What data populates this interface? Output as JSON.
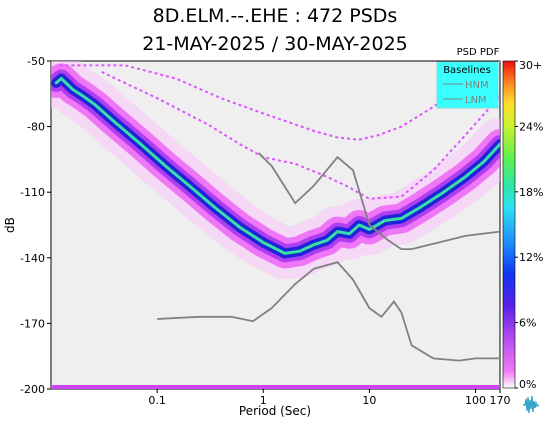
{
  "title_line1": "8D.ELM.--.EHE : 472 PSDs",
  "title_line2": "21-MAY-2025 / 30-MAY-2025",
  "colorbar_title": "PSD PDF",
  "legend": {
    "title": "Baselines",
    "entries": [
      "HNM",
      "LNM"
    ]
  },
  "colors": {
    "plot_background": "#efefef",
    "legend_background": "#39ffff",
    "baseline_lines": "#808080",
    "noise_models": "#dd55ff",
    "mode_line": "#38e0a8"
  },
  "logo_icon": "waveform-logo-icon",
  "chart_data": {
    "type": "heatmap",
    "xlabel": "Period (Sec)",
    "ylabel": "dB",
    "x_scale": "log",
    "xlim": [
      0.01,
      170
    ],
    "ylim": [
      -200,
      -50
    ],
    "x_ticks": [
      {
        "value": 0.1,
        "label": "0.1"
      },
      {
        "value": 1,
        "label": "1"
      },
      {
        "value": 10,
        "label": "10"
      },
      {
        "value": 100,
        "label": "100"
      },
      {
        "value": 170,
        "label": "170"
      }
    ],
    "y_ticks": [
      {
        "value": -50,
        "label": "-50"
      },
      {
        "value": -80,
        "label": "-80"
      },
      {
        "value": -110,
        "label": "-110"
      },
      {
        "value": -140,
        "label": "-140"
      },
      {
        "value": -170,
        "label": "-170"
      },
      {
        "value": -200,
        "label": "-200"
      }
    ],
    "colorbar": {
      "ticks": [
        "0%",
        "6%",
        "12%",
        "18%",
        "24%",
        "30+"
      ],
      "range": [
        0,
        30
      ]
    },
    "mode_curve": [
      [
        0.0112,
        -60
      ],
      [
        0.0125,
        -58
      ],
      [
        0.016,
        -63
      ],
      [
        0.02,
        -66
      ],
      [
        0.026,
        -70
      ],
      [
        0.04,
        -78
      ],
      [
        0.07,
        -88
      ],
      [
        0.12,
        -98
      ],
      [
        0.2,
        -107
      ],
      [
        0.35,
        -117
      ],
      [
        0.6,
        -126
      ],
      [
        1.0,
        -133
      ],
      [
        1.6,
        -138
      ],
      [
        2.2,
        -137
      ],
      [
        3.0,
        -134
      ],
      [
        4.0,
        -132
      ],
      [
        5.0,
        -128
      ],
      [
        6.5,
        -129
      ],
      [
        8.0,
        -125
      ],
      [
        10.0,
        -127
      ],
      [
        14.0,
        -123
      ],
      [
        20.0,
        -122
      ],
      [
        30.0,
        -117
      ],
      [
        50.0,
        -110
      ],
      [
        80.0,
        -103
      ],
      [
        120.0,
        -96
      ],
      [
        170.0,
        -88
      ]
    ],
    "gray_lines": [
      {
        "points": [
          [
            0.9,
            -92
          ],
          [
            1.2,
            -98
          ],
          [
            2.0,
            -115
          ],
          [
            3.0,
            -107
          ],
          [
            5.0,
            -94
          ],
          [
            7.0,
            -100
          ],
          [
            10.0,
            -125
          ],
          [
            15.0,
            -132
          ],
          [
            20.0,
            -136
          ],
          [
            25.0,
            -136
          ],
          [
            45.0,
            -133
          ],
          [
            80.0,
            -130
          ],
          [
            170.0,
            -128
          ]
        ]
      },
      {
        "points": [
          [
            0.1,
            -168
          ],
          [
            0.25,
            -167
          ],
          [
            0.5,
            -167
          ],
          [
            0.8,
            -169
          ],
          [
            1.2,
            -163
          ],
          [
            2.0,
            -152
          ],
          [
            3.0,
            -145
          ],
          [
            5.0,
            -142
          ],
          [
            7.0,
            -150
          ],
          [
            10.0,
            -163
          ],
          [
            13.0,
            -167
          ],
          [
            17.0,
            -160
          ],
          [
            20.0,
            -165
          ],
          [
            25.0,
            -180
          ],
          [
            40.0,
            -186
          ],
          [
            70.0,
            -187
          ],
          [
            100.0,
            -186
          ],
          [
            170.0,
            -186
          ]
        ]
      }
    ],
    "noise_model_curves": [
      {
        "name": "HNM",
        "points": [
          [
            0.012,
            -52
          ],
          [
            0.05,
            -52
          ],
          [
            0.15,
            -58
          ],
          [
            0.4,
            -67
          ],
          [
            1.0,
            -74
          ],
          [
            2.0,
            -79
          ],
          [
            3.0,
            -82
          ],
          [
            5.0,
            -85
          ],
          [
            8.0,
            -86
          ],
          [
            12.0,
            -84
          ],
          [
            20.0,
            -80
          ],
          [
            40.0,
            -71
          ],
          [
            80.0,
            -60
          ],
          [
            170.0,
            -50
          ]
        ]
      },
      {
        "name": "LNM",
        "points": [
          [
            0.03,
            -55
          ],
          [
            0.1,
            -67
          ],
          [
            0.3,
            -79
          ],
          [
            0.6,
            -88
          ],
          [
            1.0,
            -94
          ],
          [
            2.0,
            -97
          ],
          [
            4.0,
            -103
          ],
          [
            6.0,
            -107
          ],
          [
            10.0,
            -113
          ],
          [
            20.0,
            -112
          ],
          [
            40.0,
            -100
          ],
          [
            80.0,
            -84
          ],
          [
            170.0,
            -66
          ]
        ]
      }
    ]
  }
}
